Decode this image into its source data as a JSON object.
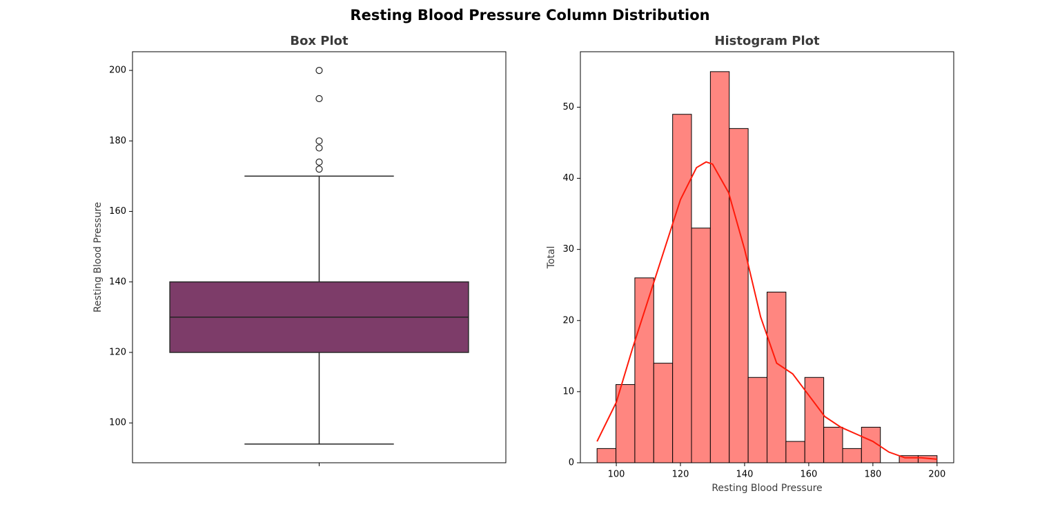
{
  "title": "Resting Blood Pressure Column Distribution",
  "chart_data": [
    {
      "type": "box",
      "title": "Box Plot",
      "ylabel": "Resting Blood Pressure",
      "color": "#7d3c69",
      "min": 94,
      "q1": 120,
      "median": 130,
      "q3": 140,
      "max": 170,
      "outliers": [
        172,
        174,
        178,
        180,
        192,
        200
      ],
      "ylim": [
        88.7,
        205.3
      ],
      "yticks": [
        100,
        120,
        140,
        160,
        180,
        200
      ]
    },
    {
      "type": "histogram",
      "title": "Histogram Plot",
      "xlabel": "Resting Blood Pressure",
      "ylabel": "Total",
      "color": "#ff8680",
      "bins": [
        94,
        99.89,
        105.78,
        111.67,
        117.56,
        123.44,
        129.33,
        135.22,
        141.11,
        147,
        152.89,
        158.78,
        164.67,
        170.56,
        176.44,
        182.33,
        188.22,
        194.11,
        200
      ],
      "values": [
        2,
        11,
        26,
        14,
        49,
        33,
        55,
        47,
        12,
        24,
        3,
        12,
        5,
        2,
        5,
        0,
        1,
        1
      ],
      "kde": {
        "color": "#ff1a0a",
        "x": [
          94,
          100,
          105,
          110,
          115,
          120,
          125,
          128,
          130,
          135,
          140,
          145,
          150,
          155,
          160,
          165,
          170,
          175,
          180,
          185,
          190,
          195,
          200
        ],
        "values": [
          3,
          8.5,
          16,
          23,
          30,
          37,
          41.5,
          42.3,
          42,
          38,
          30,
          20.5,
          14,
          12.5,
          9.5,
          6.5,
          5,
          4,
          3,
          1.5,
          0.7,
          0.7,
          0.5
        ]
      },
      "xlim": [
        88.8,
        205.2
      ],
      "ylim": [
        0,
        57.8
      ],
      "xticks": [
        100,
        120,
        140,
        160,
        180,
        200
      ],
      "yticks": [
        0,
        10,
        20,
        30,
        40,
        50
      ]
    }
  ]
}
